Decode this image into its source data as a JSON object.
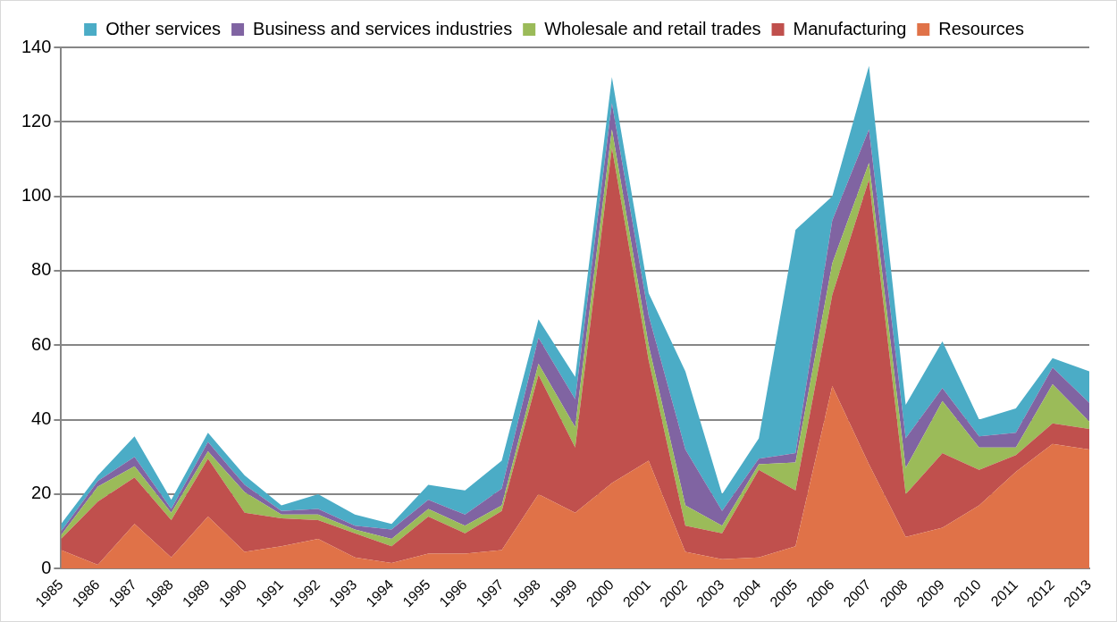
{
  "chart_data": {
    "type": "area",
    "stacked": true,
    "categories": [
      "1985",
      "1986",
      "1987",
      "1988",
      "1989",
      "1990",
      "1991",
      "1992",
      "1993",
      "1994",
      "1995",
      "1996",
      "1997",
      "1998",
      "1999",
      "2000",
      "2001",
      "2002",
      "2003",
      "2004",
      "2005",
      "2006",
      "2007",
      "2008",
      "2009",
      "2010",
      "2011",
      "2012",
      "2013"
    ],
    "series": [
      {
        "name": "Resources",
        "color": "#e07248",
        "values": [
          5,
          1,
          12,
          3,
          14,
          4.5,
          6,
          8,
          3,
          1.5,
          4,
          4,
          5,
          20,
          15,
          23,
          29,
          4.5,
          2.5,
          3,
          6,
          49,
          28,
          8.5,
          11,
          17,
          26,
          33.5,
          32
        ]
      },
      {
        "name": "Manufacturing",
        "color": "#c0504d",
        "values": [
          3,
          17,
          12.5,
          10,
          15.5,
          10.5,
          7.5,
          5,
          6.5,
          4.5,
          10,
          5.5,
          10.5,
          32,
          17.5,
          90,
          27,
          7,
          7,
          23.5,
          15,
          24.5,
          76.5,
          11.5,
          20,
          9.5,
          4.5,
          5.5,
          5.5
        ]
      },
      {
        "name": "Wholesale and retail trades",
        "color": "#9bbb59",
        "values": [
          1,
          4,
          3,
          2,
          2,
          5.5,
          1,
          1.5,
          1,
          2,
          2,
          2,
          1.5,
          3,
          5.5,
          5,
          4,
          5.5,
          2,
          1.5,
          7.5,
          8.5,
          4.5,
          7,
          14,
          6,
          2,
          10.5,
          2
        ]
      },
      {
        "name": "Business and services industries",
        "color": "#8064a2",
        "values": [
          1,
          1.5,
          2.5,
          1,
          2.5,
          2,
          1,
          1.5,
          1,
          2.5,
          2.5,
          3,
          4.5,
          7,
          7.5,
          7,
          8,
          15,
          4,
          1.5,
          2.5,
          11.5,
          9,
          8,
          3.5,
          3,
          4,
          4.5,
          5
        ]
      },
      {
        "name": "Other services",
        "color": "#4bacc6",
        "values": [
          2,
          1.5,
          5.5,
          2.5,
          2.5,
          2.5,
          1.5,
          4,
          3,
          1.5,
          4,
          6.5,
          7.5,
          5,
          6,
          7,
          6,
          21,
          4.5,
          5.5,
          60,
          6.5,
          17,
          9,
          12.5,
          4.5,
          6.5,
          2.5,
          8.5
        ]
      }
    ],
    "ylim": [
      0,
      140
    ],
    "yticks": [
      0,
      20,
      40,
      60,
      80,
      100,
      120,
      140
    ],
    "grid": "y",
    "legend": "top"
  }
}
